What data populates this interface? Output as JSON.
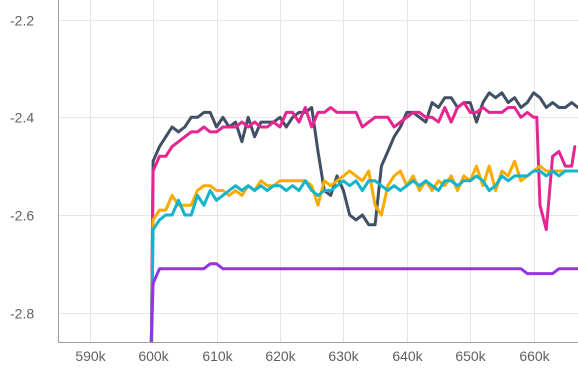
{
  "chart_data": {
    "type": "line",
    "title": "",
    "xlabel": "",
    "ylabel": "",
    "xlim": [
      585000,
      667000
    ],
    "ylim": [
      -2.86,
      -2.16
    ],
    "x_ticks": [
      590000,
      600000,
      610000,
      620000,
      630000,
      640000,
      650000,
      660000
    ],
    "x_tick_labels": [
      "590k",
      "600k",
      "610k",
      "620k",
      "630k",
      "640k",
      "650k",
      "660k"
    ],
    "y_ticks": [
      -2.2,
      -2.4,
      -2.6,
      -2.8
    ],
    "y_tick_labels": [
      "-2.2",
      "-2.4",
      "-2.6",
      "-2.8"
    ],
    "grid": true,
    "legend": "none",
    "series": [
      {
        "color": "#425066",
        "x": [
          599700,
          600000,
          601000,
          602000,
          603000,
          604000,
          605000,
          606000,
          607000,
          608000,
          609000,
          610000,
          611000,
          612000,
          613000,
          614000,
          615000,
          616000,
          617000,
          618000,
          619000,
          620000,
          621000,
          622000,
          623000,
          624000,
          625000,
          626000,
          627000,
          628000,
          629000,
          630000,
          631000,
          632000,
          633000,
          634000,
          635000,
          636000,
          637000,
          638000,
          639000,
          640000,
          641000,
          642000,
          643000,
          644000,
          645000,
          646000,
          647000,
          648000,
          649000,
          650000,
          651000,
          652000,
          653000,
          654000,
          655000,
          656000,
          657000,
          658000,
          659000,
          660000,
          661000,
          662000,
          663000,
          664000,
          665000,
          666000,
          667000
        ],
        "y": [
          -2.9,
          -2.49,
          -2.46,
          -2.44,
          -2.42,
          -2.43,
          -2.42,
          -2.4,
          -2.4,
          -2.39,
          -2.39,
          -2.42,
          -2.4,
          -2.42,
          -2.41,
          -2.45,
          -2.4,
          -2.44,
          -2.41,
          -2.41,
          -2.41,
          -2.4,
          -2.42,
          -2.4,
          -2.39,
          -2.39,
          -2.38,
          -2.47,
          -2.55,
          -2.56,
          -2.52,
          -2.55,
          -2.6,
          -2.61,
          -2.6,
          -2.62,
          -2.62,
          -2.5,
          -2.47,
          -2.44,
          -2.42,
          -2.39,
          -2.39,
          -2.4,
          -2.41,
          -2.37,
          -2.38,
          -2.36,
          -2.36,
          -2.38,
          -2.37,
          -2.37,
          -2.41,
          -2.37,
          -2.35,
          -2.36,
          -2.35,
          -2.37,
          -2.36,
          -2.38,
          -2.37,
          -2.35,
          -2.36,
          -2.38,
          -2.37,
          -2.38,
          -2.38,
          -2.37,
          -2.38
        ]
      },
      {
        "color": "#e52592",
        "x": [
          599700,
          600000,
          601000,
          602000,
          603000,
          604000,
          605000,
          606000,
          607000,
          608000,
          609000,
          610000,
          611000,
          612000,
          613000,
          614000,
          615000,
          616000,
          617000,
          618000,
          619000,
          620000,
          621000,
          622000,
          623000,
          624000,
          625000,
          626000,
          627000,
          628000,
          629000,
          630000,
          631000,
          632000,
          633000,
          634000,
          635000,
          636000,
          637000,
          638000,
          639000,
          640000,
          641000,
          642000,
          643000,
          644000,
          645000,
          646000,
          647000,
          648000,
          649000,
          650000,
          651000,
          652000,
          653000,
          654000,
          655000,
          656000,
          657000,
          658000,
          659000,
          660000,
          660500,
          661000,
          662000,
          663000,
          664000,
          665000,
          666000,
          666500
        ],
        "y": [
          -2.9,
          -2.51,
          -2.48,
          -2.48,
          -2.46,
          -2.45,
          -2.44,
          -2.43,
          -2.43,
          -2.42,
          -2.43,
          -2.43,
          -2.42,
          -2.42,
          -2.42,
          -2.41,
          -2.42,
          -2.41,
          -2.42,
          -2.42,
          -2.41,
          -2.42,
          -2.39,
          -2.39,
          -2.41,
          -2.38,
          -2.42,
          -2.39,
          -2.39,
          -2.38,
          -2.39,
          -2.39,
          -2.39,
          -2.39,
          -2.42,
          -2.41,
          -2.4,
          -2.4,
          -2.4,
          -2.42,
          -2.41,
          -2.4,
          -2.39,
          -2.39,
          -2.4,
          -2.4,
          -2.41,
          -2.38,
          -2.41,
          -2.38,
          -2.37,
          -2.39,
          -2.39,
          -2.38,
          -2.39,
          -2.39,
          -2.39,
          -2.38,
          -2.38,
          -2.4,
          -2.39,
          -2.4,
          -2.4,
          -2.58,
          -2.63,
          -2.48,
          -2.47,
          -2.5,
          -2.5,
          -2.46
        ]
      },
      {
        "color": "#f9ab00",
        "x": [
          599700,
          600000,
          601000,
          602000,
          603000,
          604000,
          605000,
          606000,
          607000,
          608000,
          609000,
          610000,
          611000,
          612000,
          613000,
          614000,
          615000,
          616000,
          617000,
          618000,
          619000,
          620000,
          621000,
          622000,
          623000,
          624000,
          625000,
          626000,
          627000,
          628000,
          629000,
          630000,
          631000,
          632000,
          633000,
          634000,
          635000,
          636000,
          637000,
          638000,
          639000,
          640000,
          641000,
          642000,
          643000,
          644000,
          645000,
          646000,
          647000,
          648000,
          649000,
          650000,
          651000,
          652000,
          653000,
          654000,
          655000,
          656000,
          657000,
          658000,
          659000,
          660000,
          661000,
          662000,
          663000,
          664000,
          665000,
          666000,
          667000
        ],
        "y": [
          -2.9,
          -2.61,
          -2.59,
          -2.59,
          -2.56,
          -2.58,
          -2.58,
          -2.58,
          -2.55,
          -2.54,
          -2.54,
          -2.55,
          -2.55,
          -2.56,
          -2.55,
          -2.56,
          -2.54,
          -2.55,
          -2.53,
          -2.54,
          -2.54,
          -2.53,
          -2.53,
          -2.53,
          -2.53,
          -2.53,
          -2.54,
          -2.58,
          -2.53,
          -2.54,
          -2.53,
          -2.52,
          -2.51,
          -2.52,
          -2.53,
          -2.51,
          -2.58,
          -2.6,
          -2.54,
          -2.52,
          -2.51,
          -2.54,
          -2.52,
          -2.55,
          -2.53,
          -2.55,
          -2.53,
          -2.54,
          -2.52,
          -2.55,
          -2.52,
          -2.53,
          -2.5,
          -2.54,
          -2.5,
          -2.55,
          -2.51,
          -2.52,
          -2.49,
          -2.53,
          -2.52,
          -2.51,
          -2.5,
          -2.51,
          -2.51,
          -2.51,
          -2.51,
          -2.51,
          -2.51
        ]
      },
      {
        "color": "#12b5cb",
        "x": [
          599700,
          600000,
          601000,
          602000,
          603000,
          604000,
          605000,
          606000,
          607000,
          608000,
          609000,
          610000,
          611000,
          612000,
          613000,
          614000,
          615000,
          616000,
          617000,
          618000,
          619000,
          620000,
          621000,
          622000,
          623000,
          624000,
          625000,
          626000,
          627000,
          628000,
          629000,
          630000,
          631000,
          632000,
          633000,
          634000,
          635000,
          636000,
          637000,
          638000,
          639000,
          640000,
          641000,
          642000,
          643000,
          644000,
          645000,
          646000,
          647000,
          648000,
          649000,
          650000,
          651000,
          652000,
          653000,
          654000,
          655000,
          656000,
          657000,
          658000,
          659000,
          660000,
          661000,
          662000,
          663000,
          664000,
          665000,
          666000,
          667000
        ],
        "y": [
          -2.9,
          -2.63,
          -2.61,
          -2.6,
          -2.6,
          -2.57,
          -2.6,
          -2.6,
          -2.56,
          -2.58,
          -2.55,
          -2.57,
          -2.56,
          -2.55,
          -2.54,
          -2.55,
          -2.54,
          -2.55,
          -2.54,
          -2.55,
          -2.54,
          -2.54,
          -2.55,
          -2.54,
          -2.55,
          -2.53,
          -2.55,
          -2.56,
          -2.55,
          -2.55,
          -2.54,
          -2.53,
          -2.54,
          -2.53,
          -2.55,
          -2.53,
          -2.53,
          -2.54,
          -2.55,
          -2.54,
          -2.55,
          -2.54,
          -2.53,
          -2.54,
          -2.53,
          -2.54,
          -2.55,
          -2.53,
          -2.53,
          -2.54,
          -2.53,
          -2.53,
          -2.52,
          -2.53,
          -2.55,
          -2.54,
          -2.52,
          -2.53,
          -2.52,
          -2.52,
          -2.52,
          -2.51,
          -2.51,
          -2.52,
          -2.51,
          -2.52,
          -2.51,
          -2.51,
          -2.51
        ]
      },
      {
        "color": "#9334e6",
        "x": [
          599700,
          600000,
          601000,
          602000,
          603000,
          604000,
          605000,
          606000,
          607000,
          608000,
          609000,
          610000,
          611000,
          612000,
          613000,
          614000,
          615000,
          616000,
          617000,
          618000,
          619000,
          620000,
          621000,
          622000,
          623000,
          624000,
          625000,
          626000,
          627000,
          628000,
          629000,
          630000,
          631000,
          632000,
          633000,
          634000,
          635000,
          636000,
          637000,
          638000,
          639000,
          640000,
          641000,
          642000,
          643000,
          644000,
          645000,
          646000,
          647000,
          648000,
          649000,
          650000,
          651000,
          652000,
          653000,
          654000,
          655000,
          656000,
          657000,
          658000,
          659000,
          660000,
          661000,
          662000,
          663000,
          664000,
          665000,
          666000,
          667000
        ],
        "y": [
          -2.86,
          -2.74,
          -2.71,
          -2.71,
          -2.71,
          -2.71,
          -2.71,
          -2.71,
          -2.71,
          -2.71,
          -2.7,
          -2.7,
          -2.71,
          -2.71,
          -2.71,
          -2.71,
          -2.71,
          -2.71,
          -2.71,
          -2.71,
          -2.71,
          -2.71,
          -2.71,
          -2.71,
          -2.71,
          -2.71,
          -2.71,
          -2.71,
          -2.71,
          -2.71,
          -2.71,
          -2.71,
          -2.71,
          -2.71,
          -2.71,
          -2.71,
          -2.71,
          -2.71,
          -2.71,
          -2.71,
          -2.71,
          -2.71,
          -2.71,
          -2.71,
          -2.71,
          -2.71,
          -2.71,
          -2.71,
          -2.71,
          -2.71,
          -2.71,
          -2.71,
          -2.71,
          -2.71,
          -2.71,
          -2.71,
          -2.71,
          -2.71,
          -2.71,
          -2.71,
          -2.72,
          -2.72,
          -2.72,
          -2.72,
          -2.72,
          -2.71,
          -2.71,
          -2.71,
          -2.71
        ]
      }
    ]
  }
}
